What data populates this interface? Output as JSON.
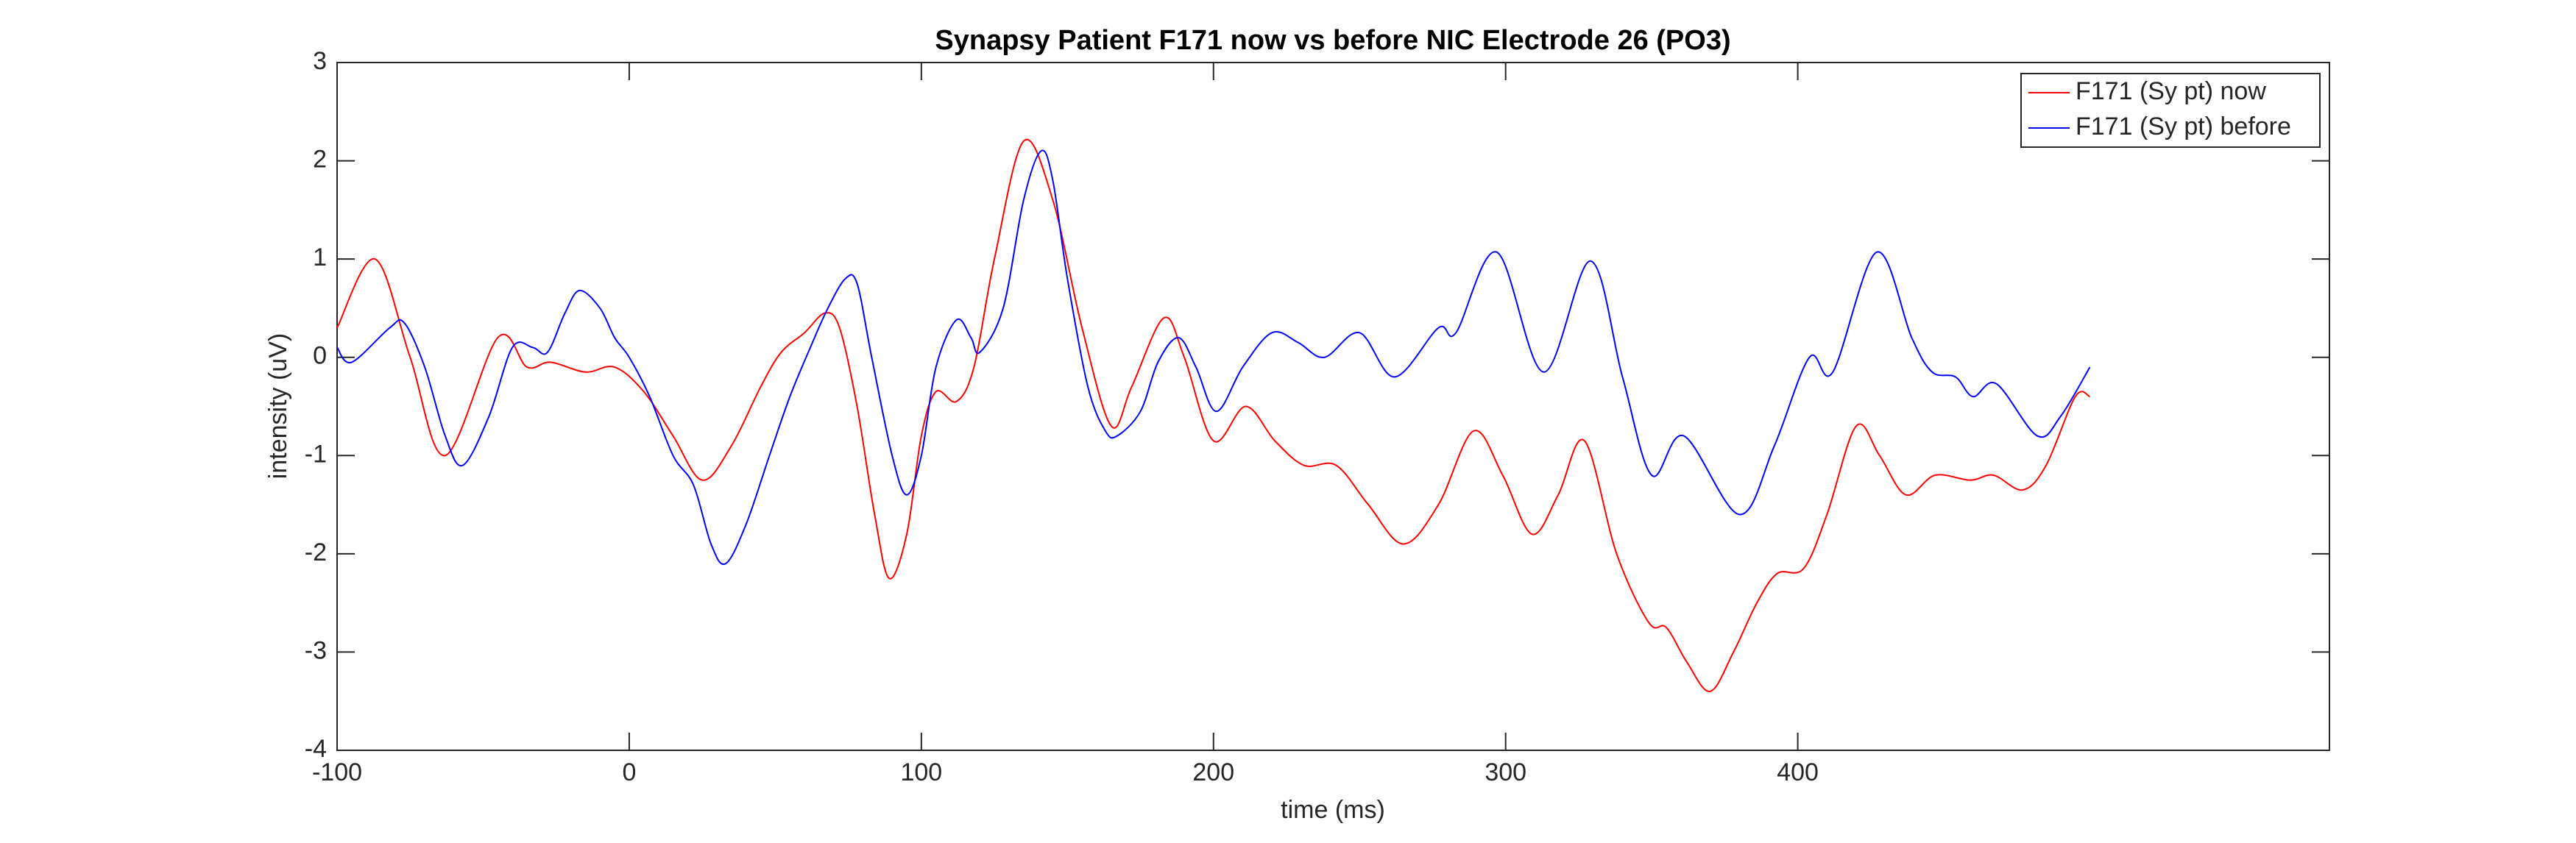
{
  "chart_data": {
    "type": "line",
    "title": "Synapsy Patient F171 now vs before NIC Electrode 26 (PO3)",
    "xlabel": "time (ms)",
    "ylabel": "intensity (uV)",
    "xlim": [
      -100,
      582
    ],
    "xticks": [
      -100,
      0,
      100,
      200,
      300,
      400
    ],
    "ylim": [
      -4,
      3
    ],
    "yticks": [
      -4,
      -3,
      -2,
      -1,
      0,
      1,
      2,
      3
    ],
    "grid": false,
    "legend": "upper right",
    "series": [
      {
        "name": "F171 (Sy pt) now",
        "color": "#ff0000",
        "x": [
          -100,
          -87,
          -75,
          -63,
          -45,
          -35,
          -27,
          -15,
          -5,
          5,
          15,
          25,
          35,
          45,
          52,
          60,
          67,
          72,
          78,
          84,
          89,
          95,
          100,
          105,
          112,
          118,
          125,
          135,
          145,
          155,
          165,
          172,
          183,
          190,
          200,
          211,
          221,
          231,
          242,
          253,
          265,
          277,
          289,
          299,
          309,
          318,
          327,
          338,
          349,
          355,
          362,
          370,
          378,
          386,
          393,
          402,
          410,
          420,
          428,
          437,
          447,
          459,
          467,
          477,
          485,
          495,
          500
        ],
        "values": [
          0.3,
          1.0,
          0.0,
          -1.0,
          0.2,
          -0.1,
          -0.05,
          -0.15,
          -0.1,
          -0.35,
          -0.8,
          -1.25,
          -0.9,
          -0.3,
          0.05,
          0.25,
          0.45,
          0.3,
          -0.5,
          -1.6,
          -2.25,
          -1.8,
          -0.8,
          -0.35,
          -0.45,
          -0.1,
          1.0,
          2.2,
          1.6,
          0.3,
          -0.7,
          -0.3,
          0.4,
          0.0,
          -0.85,
          -0.5,
          -0.85,
          -1.1,
          -1.1,
          -1.5,
          -1.9,
          -1.5,
          -0.75,
          -1.2,
          -1.8,
          -1.4,
          -0.85,
          -2.0,
          -2.7,
          -2.75,
          -3.1,
          -3.4,
          -3.0,
          -2.5,
          -2.2,
          -2.15,
          -1.6,
          -0.7,
          -1.0,
          -1.4,
          -1.2,
          -1.25,
          -1.2,
          -1.35,
          -1.1,
          -0.4,
          -0.4
        ]
      },
      {
        "name": "F171 (Sy pt) before",
        "color": "#0000ff",
        "x": [
          -100,
          -95,
          -82,
          -77,
          -70,
          -63,
          -57,
          -48,
          -40,
          -33,
          -28,
          -22,
          -17,
          -10,
          -5,
          0,
          7,
          15,
          22,
          28,
          33,
          40,
          48,
          55,
          62,
          68,
          74,
          78,
          83,
          90,
          95,
          100,
          105,
          112,
          117,
          120,
          128,
          135,
          141,
          145,
          150,
          157,
          163,
          167,
          175,
          181,
          188,
          194,
          201,
          210,
          220,
          229,
          238,
          250,
          262,
          277,
          283,
          297,
          313,
          329,
          340,
          350,
          361,
          380,
          392,
          404,
          412,
          427,
          439,
          446,
          454,
          460,
          468,
          482,
          490,
          500
        ],
        "values": [
          0.1,
          -0.05,
          0.3,
          0.35,
          -0.1,
          -0.8,
          -1.1,
          -0.6,
          0.1,
          0.1,
          0.05,
          0.45,
          0.68,
          0.5,
          0.2,
          0.0,
          -0.4,
          -1.0,
          -1.3,
          -1.9,
          -2.1,
          -1.7,
          -1.0,
          -0.4,
          0.1,
          0.5,
          0.8,
          0.75,
          0.0,
          -1.0,
          -1.4,
          -1.0,
          -0.1,
          0.38,
          0.2,
          0.05,
          0.5,
          1.6,
          2.1,
          1.8,
          0.8,
          -0.3,
          -0.75,
          -0.8,
          -0.55,
          -0.05,
          0.2,
          -0.1,
          -0.55,
          -0.1,
          0.25,
          0.15,
          0.0,
          0.25,
          -0.2,
          0.3,
          0.25,
          1.07,
          -0.15,
          0.98,
          -0.2,
          -1.2,
          -0.8,
          -1.6,
          -0.9,
          0.0,
          -0.15,
          1.07,
          0.2,
          -0.15,
          -0.2,
          -0.4,
          -0.27,
          -0.8,
          -0.6,
          -0.1
        ]
      }
    ]
  }
}
